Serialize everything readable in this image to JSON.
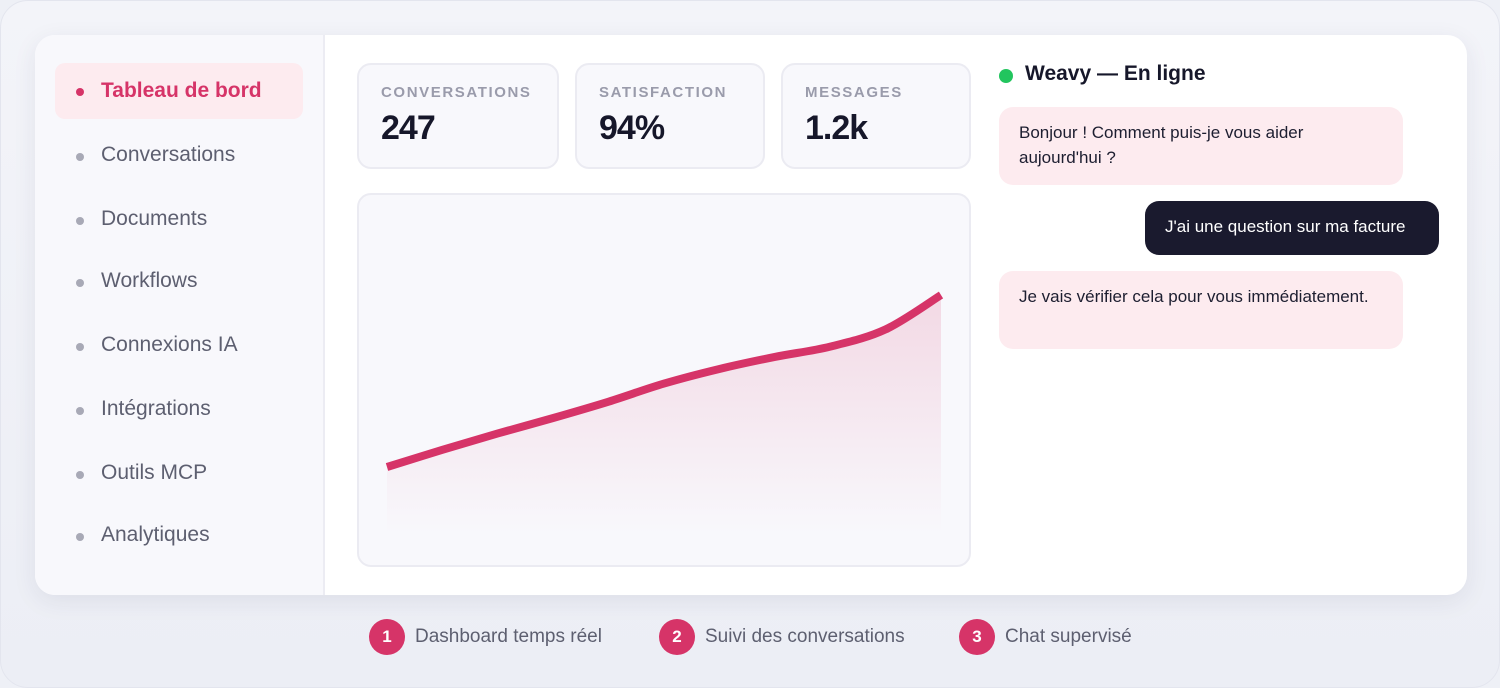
{
  "sidebar": {
    "items": [
      {
        "label": "Tableau de bord",
        "active": true
      },
      {
        "label": "Conversations",
        "active": false
      },
      {
        "label": "Documents",
        "active": false
      },
      {
        "label": "Workflows",
        "active": false
      },
      {
        "label": "Connexions IA",
        "active": false
      },
      {
        "label": "Intégrations",
        "active": false
      },
      {
        "label": "Outils MCP",
        "active": false
      },
      {
        "label": "Analytiques",
        "active": false
      }
    ]
  },
  "stats": [
    {
      "label": "CONVERSATIONS",
      "value": "247"
    },
    {
      "label": "SATISFACTION",
      "value": "94%"
    },
    {
      "label": "MESSAGES",
      "value": "1.2k"
    }
  ],
  "chart_data": {
    "type": "area",
    "x": [
      0,
      1,
      2,
      3,
      4,
      5,
      6,
      7,
      8,
      9,
      10
    ],
    "values": [
      0,
      10,
      19.5,
      28.5,
      38,
      48.5,
      57,
      64,
      70,
      80,
      100
    ],
    "color": "#d63468",
    "title": "",
    "xlabel": "",
    "ylabel": "",
    "ylim": [
      0,
      100
    ],
    "grid": false,
    "axes_visible": false
  },
  "chat": {
    "title": "Weavy — En ligne",
    "status_color": "#22c55e",
    "messages": [
      {
        "from": "bot",
        "text": "Bonjour ! Comment puis-je vous aider aujourd'hui ?"
      },
      {
        "from": "user",
        "text": "J'ai une question sur ma facture"
      },
      {
        "from": "bot",
        "text": "Je vais vérifier cela pour vous immédiatement."
      }
    ]
  },
  "features": [
    {
      "number": "1",
      "label": "Dashboard temps réel"
    },
    {
      "number": "2",
      "label": "Suivi des conversations"
    },
    {
      "number": "3",
      "label": "Chat supervisé"
    }
  ],
  "colors": {
    "accent": "#d63468",
    "accent_light": "#fdebef",
    "dark": "#1a1a2e",
    "online": "#22c55e"
  }
}
